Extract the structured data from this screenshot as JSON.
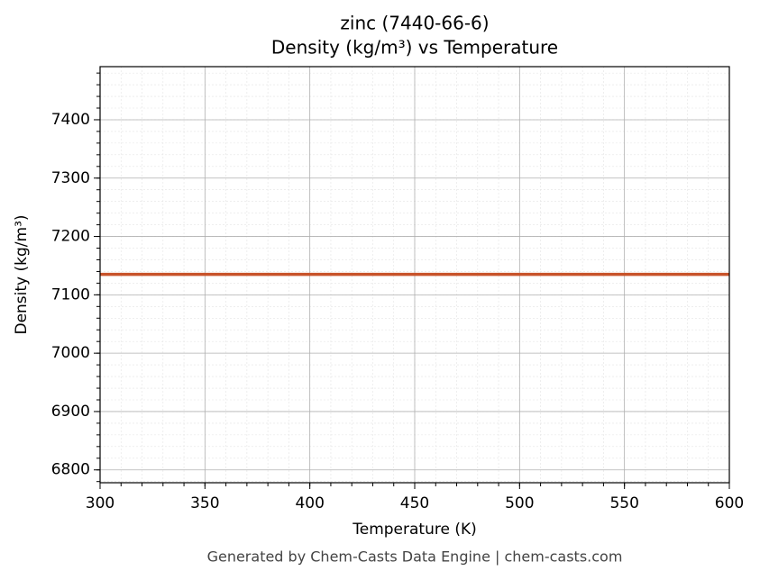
{
  "chart_data": {
    "type": "line",
    "title": "zinc (7440-66-6)",
    "subtitle": "Density (kg/m³) vs Temperature",
    "xlabel": "Temperature (K)",
    "ylabel": "Density (kg/m³)",
    "x": [
      300,
      600
    ],
    "series": [
      {
        "color": "#c8532a",
        "values": [
          7135,
          7135
        ]
      }
    ],
    "xlim": [
      300,
      600
    ],
    "xticks": [
      300,
      350,
      400,
      450,
      500,
      550,
      600
    ],
    "ylim": [
      6778,
      7491
    ],
    "yticks": [
      6800,
      6900,
      7000,
      7100,
      7200,
      7300,
      7400
    ],
    "grid": true,
    "minor_grid": true,
    "caption": "Generated by Chem-Casts Data Engine | chem-casts.com"
  }
}
